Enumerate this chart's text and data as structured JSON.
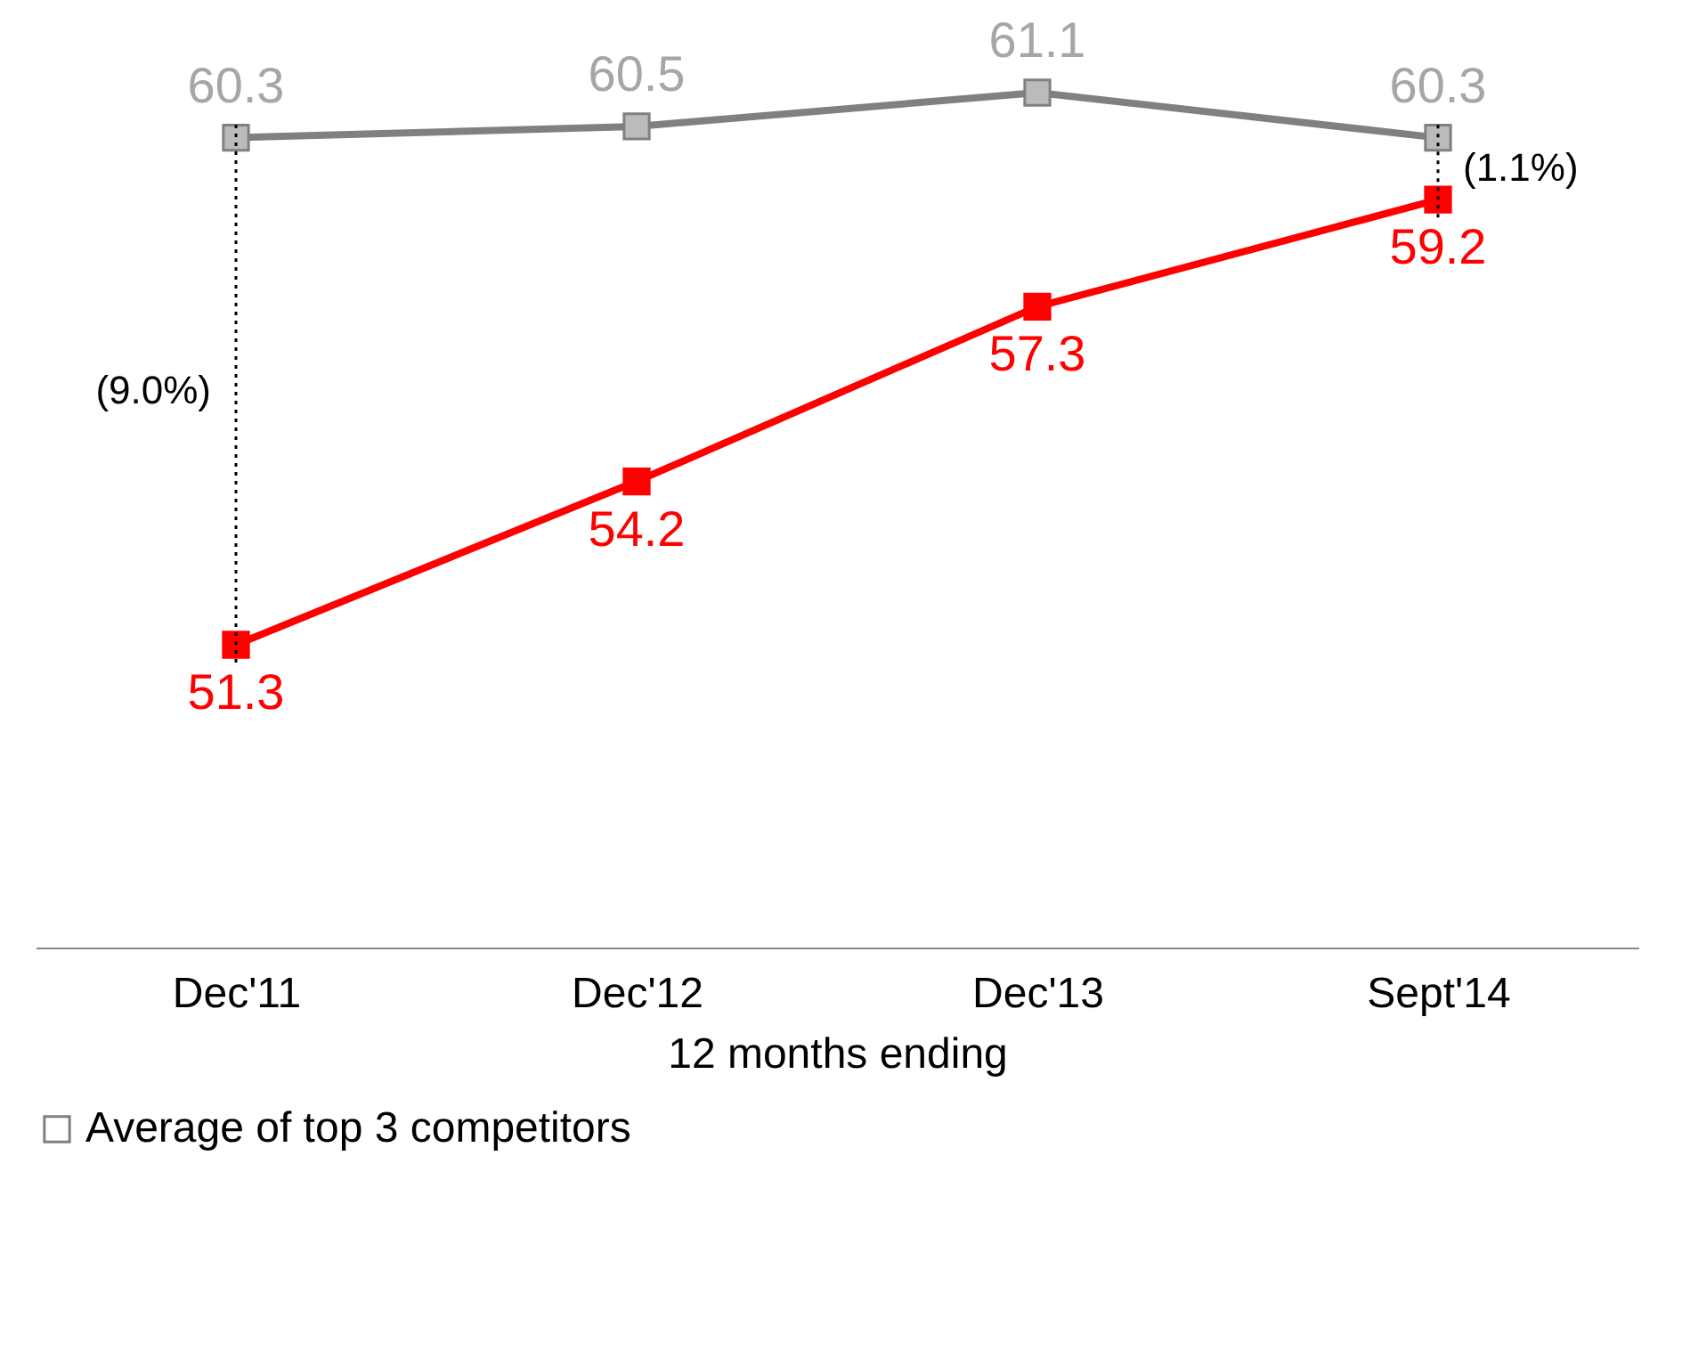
{
  "chart_data": {
    "type": "line",
    "xlabel": "12 months ending",
    "categories": [
      "Dec'11",
      "Dec'12",
      "Dec'13",
      "Sept'14"
    ],
    "series": [
      {
        "color": "#ff0000",
        "values": [
          51.3,
          54.2,
          57.3,
          59.2
        ]
      },
      {
        "name": "Average of top 3 competitors",
        "color": "#808080",
        "values": [
          60.3,
          60.5,
          61.1,
          60.3
        ]
      }
    ],
    "data_labels": true,
    "marker": "square",
    "line_style": "solid",
    "legend": "bottom",
    "annotations": [
      "(9.0%)",
      "(1.1%)"
    ]
  }
}
